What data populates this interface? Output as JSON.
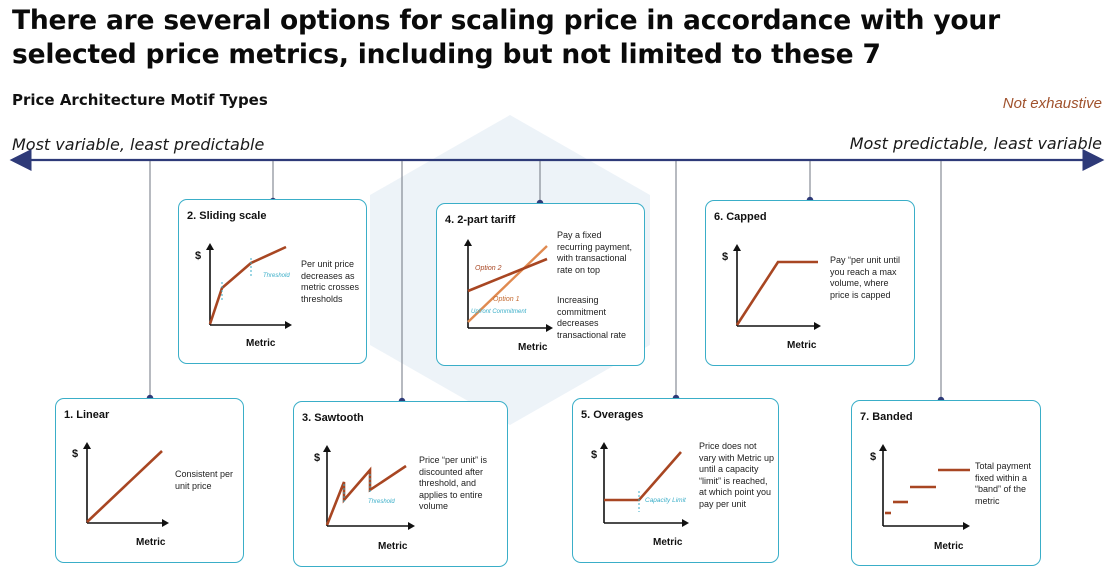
{
  "header": {
    "title": "There are several options for scaling price in accordance with your selected price metrics, including but not limited to these 7",
    "subtitle": "Price Architecture Motif Types",
    "note": "Not exhaustive"
  },
  "axis": {
    "left_label": "Most variable, least predictable",
    "right_label": "Most predictable, least variable"
  },
  "common": {
    "y_symbol": "$",
    "x_label": "Metric"
  },
  "cards": {
    "linear": {
      "title": "1. Linear",
      "desc": "Consistent per unit price"
    },
    "sliding": {
      "title": "2. Sliding scale",
      "desc": "Per unit price decreases as metric crosses thresholds",
      "marker": "Threshold"
    },
    "sawtooth": {
      "title": "3. Sawtooth",
      "desc": "Price “per unit” is discounted after threshold, and applies to entire volume",
      "marker": "Threshold"
    },
    "tariff": {
      "title": "4. 2-part tariff",
      "desc1": "Pay a fixed recurring payment, with transactional rate on top",
      "desc2": "Increasing commitment decreases transactional rate",
      "option2": "Option 2",
      "option1": "Option 1",
      "commitment": "Upfront Commitment"
    },
    "overages": {
      "title": "5. Overages",
      "desc": "Price does not vary with Metric up until a capacity “limit” is reached, at which point you pay per unit",
      "marker": "Capacity Limit"
    },
    "capped": {
      "title": "6. Capped",
      "desc": "Pay “per unit until you reach a max volume, where price is capped"
    },
    "banded": {
      "title": "7. Banded",
      "desc": "Total payment fixed within a “band” of the metric"
    }
  },
  "colors": {
    "timeline": "#2e3a78",
    "card_border": "#3aaec8",
    "curve": "#a84622",
    "curve_light": "#e08a50",
    "marker": "#3aaec8",
    "note": "#a0522d"
  }
}
